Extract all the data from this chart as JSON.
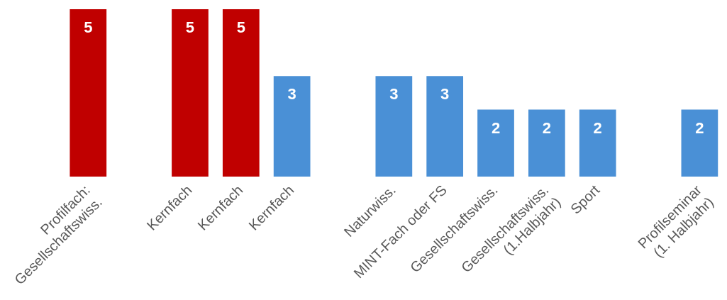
{
  "chart_data": {
    "type": "bar",
    "categories": [
      "Profilfach:\nGesellschaftswiss.",
      null,
      "Kernfach",
      "Kernfach",
      "Kernfach",
      null,
      "Naturwiss.",
      "MINT-Fach oder FS",
      "Gesellschaftswiss.",
      "Gesellschaftswiss.\n(1.Halbjahr)",
      "Sport",
      null,
      "Profilseminar\n(1. Halbjahr)"
    ],
    "values": [
      5,
      null,
      5,
      5,
      3,
      null,
      3,
      3,
      2,
      2,
      2,
      null,
      2
    ],
    "colors": [
      "#c00000",
      "#c00000",
      "#c00000",
      "#c00000",
      "#4a90d6",
      "#4a90d6",
      "#4a90d6",
      "#4a90d6",
      "#4a90d6",
      "#4a90d6",
      "#4a90d6",
      "#4a90d6",
      "#4a90d6"
    ],
    "ylim": [
      0,
      5
    ],
    "data_labels": true,
    "grid": false,
    "legend": false
  }
}
